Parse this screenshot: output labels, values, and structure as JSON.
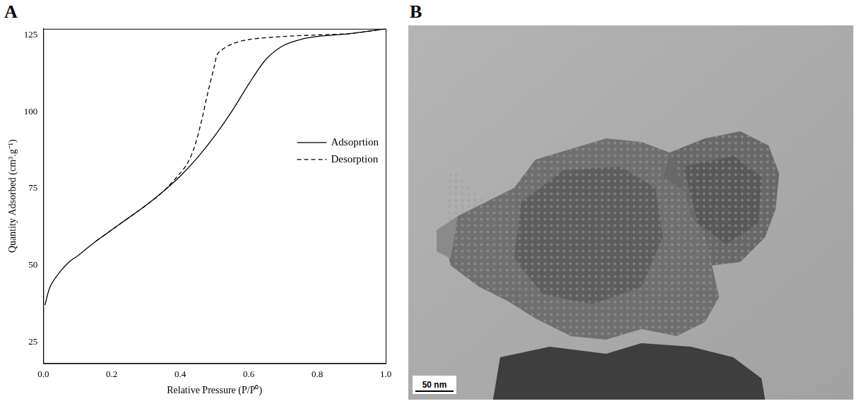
{
  "chart_data": {
    "type": "line",
    "panel_label": "A",
    "x_label": "Relative Pressure (P/P⁰)",
    "y_label": "Quantity Adsorbed (cm³.g⁻¹)",
    "xlim": [
      0,
      1
    ],
    "xticks": [
      {
        "value": 0,
        "label": "0.0"
      },
      0.2,
      0.4,
      0.6,
      0.8,
      {
        "value": 1,
        "label": "1.0"
      }
    ],
    "ylim": [
      18,
      127
    ],
    "yticks": [
      25,
      50,
      75,
      100,
      125
    ],
    "grid": false,
    "legend": "right",
    "series": [
      {
        "name": "Adsoprtion",
        "color": "#000000",
        "line_style": "solid",
        "marker": "none",
        "x": [
          0.005,
          0.02,
          0.05,
          0.08,
          0.1,
          0.15,
          0.2,
          0.25,
          0.3,
          0.35,
          0.4,
          0.45,
          0.5,
          0.55,
          0.6,
          0.65,
          0.7,
          0.75,
          0.8,
          0.9,
          1.0
        ],
        "values": [
          37,
          43,
          48,
          51.5,
          53,
          57.5,
          61.5,
          65.5,
          69.5,
          74,
          79,
          85,
          92,
          100,
          109,
          117,
          121.5,
          123.5,
          124.5,
          125.5,
          127
        ]
      },
      {
        "name": "Desorption",
        "color": "#000000",
        "line_style": "dashed",
        "marker": "none",
        "x": [
          1.0,
          0.9,
          0.8,
          0.7,
          0.6,
          0.55,
          0.51,
          0.5,
          0.48,
          0.46,
          0.44,
          0.42,
          0.4,
          0.35,
          0.3,
          0.2,
          0.15
        ],
        "values": [
          127,
          125.5,
          125,
          124.5,
          123.5,
          122,
          119,
          115,
          106,
          96,
          88,
          83,
          80,
          74,
          69.5,
          61.5,
          57.5
        ]
      }
    ]
  },
  "image": {
    "panel_label": "B",
    "scale_bar": "50 nm"
  }
}
